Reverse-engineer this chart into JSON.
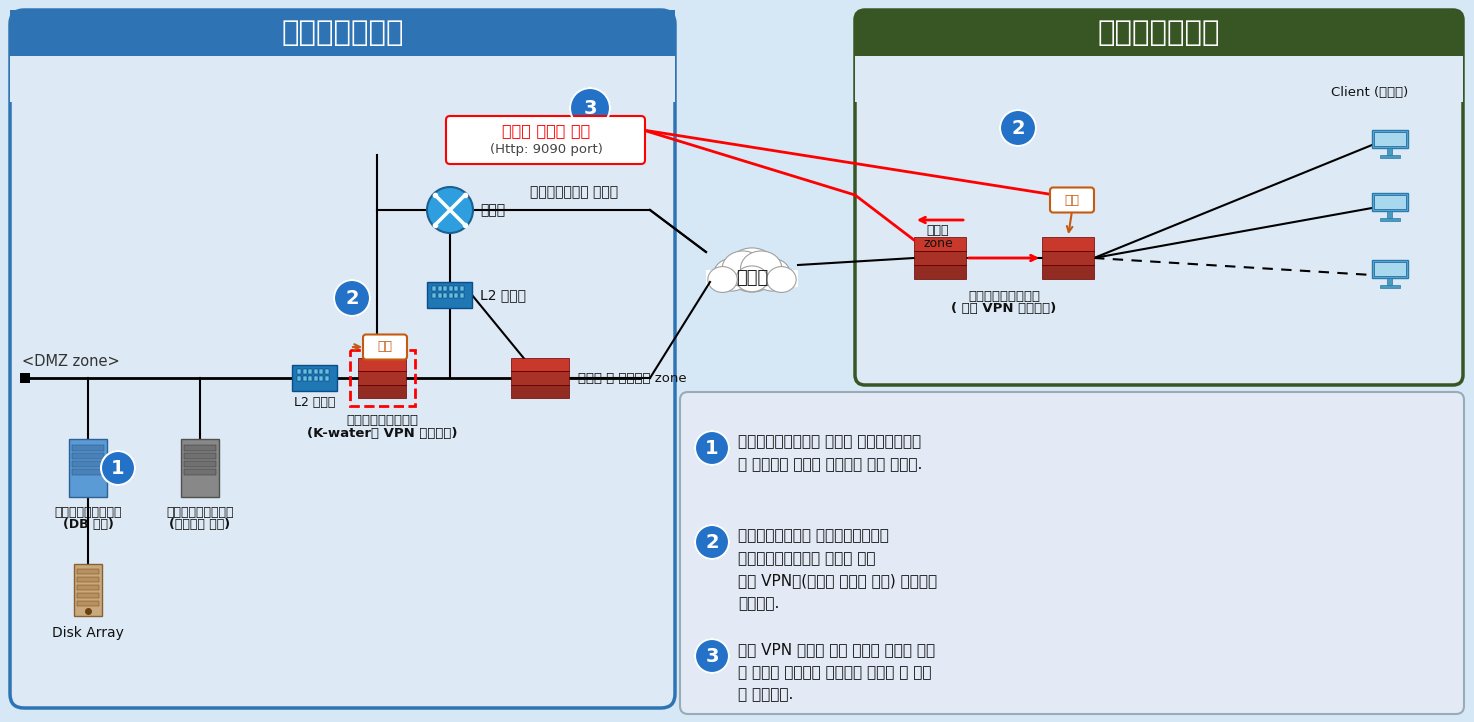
{
  "title_left": "한강홍수통제소",
  "title_right": "한국수자원공사",
  "bg_color": "#d6e8f5",
  "left_box_border": "#2e74b5",
  "left_box_fill": "#dde9f5",
  "right_box_border": "#375623",
  "right_box_fill_title": "#375623",
  "note_box_fill": "#e4eaf5",
  "note_box_border": "#9aabb8",
  "blue_circle_color": "#2472c8",
  "label_dmz": "<DMZ zone>",
  "label_l2sw1": "L2 스위치",
  "label_l2sw2": "L2 스위치",
  "label_router": "라우터",
  "label_firewall_zone": "방화벽 및 보안장비 zone",
  "label_vpn_kwater_line1": "하천유량관리시스템",
  "label_vpn_kwater_line2": "(K-water용 VPN 보안장비)",
  "label_internet_outside": "한강홍수통제소 외부망",
  "label_encrypted": "암호화 터널링 통신",
  "label_encrypted_sub": "(Http: 9090 port)",
  "label_internet": "인터넷",
  "label_firewall_zone2_line1": "방화벽",
  "label_firewall_zone2_line2": "zone",
  "label_approve": "승인",
  "label_vpn_kwrc_line1": "하천유량관리시스템",
  "label_vpn_kwrc_line2": "( 전용 VPN 보안장비)",
  "label_db_line1": "하천유량관리시스템",
  "label_db_line2": "(DB 서버)",
  "label_mw_line1": "하천유량관리시스템",
  "label_mw_line2": "(미들웨어 서버)",
  "label_disk": "Disk Array",
  "label_client": "Client (사용자)",
  "note1_text": "하천유량관리시스템 서버는 한강홍수통제소\n에 구축되어 있으며 인터넷을 통해 접속함.",
  "note2_text": "한강홍수통제소와 한국수자원공사간\n하천유량관리시스템 사용을 위한\n전용 VPN망(붉은색 데이터 흐름) 구성하여\n사용중임.",
  "note3_text": "전용 VPN 구성을 통한 암호와 터널링 통신\n및 인가된 사용자만 시스템을 사용할 수 있도\n록 운영중임.",
  "fw_colors": [
    "#c8392b",
    "#a93226",
    "#922b21"
  ],
  "switch_color": "#1f77b4",
  "router_color": "#2e9ede",
  "computer_color": "#5dade2",
  "disk_color": "#c8a97e"
}
